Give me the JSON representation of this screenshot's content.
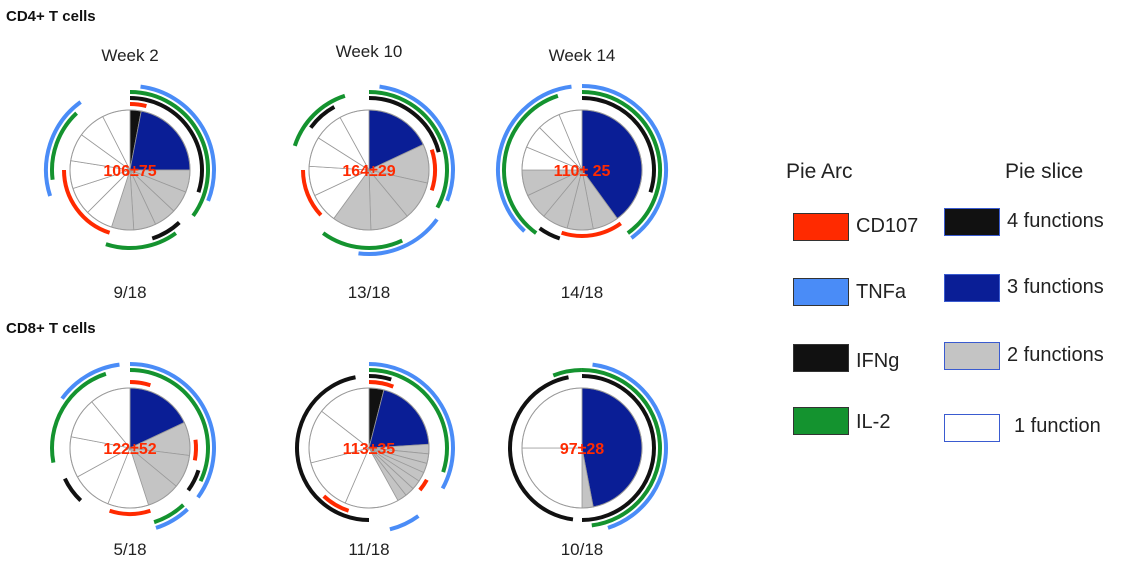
{
  "groups": [
    {
      "title": "CD4+ T cells"
    },
    {
      "title": "CD8+ T cells"
    }
  ],
  "legend": {
    "arc_title": "Pie Arc",
    "slice_title": "Pie slice",
    "arcs": [
      {
        "label": "CD107",
        "color": "#ff2a00"
      },
      {
        "label": "TNFa",
        "color": "#4a8cf7"
      },
      {
        "label": "IFNg",
        "color": "#111111"
      },
      {
        "label": "IL-2",
        "color": "#14932f"
      }
    ],
    "slices": [
      {
        "label": "4 functions",
        "color": "#111111"
      },
      {
        "label": "3 functions",
        "color": "#0a1e96"
      },
      {
        "label": "2 functions",
        "color": "#c4c4c4"
      },
      {
        "label": "1 function",
        "color": "#ffffff"
      }
    ]
  },
  "chart_data": [
    {
      "type": "pie",
      "group": "CD4+ T cells",
      "title": "Week 2",
      "center_label": "106±75",
      "responders": "9/18",
      "slices": [
        {
          "category": "4 functions",
          "value": 0.03
        },
        {
          "category": "3 functions",
          "value": 0.22
        },
        {
          "category": "2 functions",
          "value": 0.3,
          "parts": 5
        },
        {
          "category": "1 function",
          "value": 0.45,
          "parts": 6
        }
      ],
      "arcs": [
        {
          "marker": "CD107",
          "start": 0.0,
          "end": 0.04
        },
        {
          "marker": "TNFa",
          "start": 0.02,
          "end": 0.31
        },
        {
          "marker": "TNFa",
          "start": 0.7,
          "end": 0.9
        },
        {
          "marker": "IFNg",
          "start": 0.0,
          "end": 0.3
        },
        {
          "marker": "IFNg",
          "start": 0.38,
          "end": 0.45
        },
        {
          "marker": "IL-2",
          "start": 0.0,
          "end": 0.35
        },
        {
          "marker": "IL-2",
          "start": 0.4,
          "end": 0.55
        },
        {
          "marker": "IL-2",
          "start": 0.73,
          "end": 0.88
        },
        {
          "marker": "CD107",
          "start": 0.55,
          "end": 0.75
        }
      ]
    },
    {
      "type": "pie",
      "group": "CD4+ T cells",
      "title": "Week 10",
      "center_label": "164±29",
      "responders": "13/18",
      "slices": [
        {
          "category": "4 functions",
          "value": 0.0
        },
        {
          "category": "3 functions",
          "value": 0.18
        },
        {
          "category": "2 functions",
          "value": 0.42,
          "parts": 4
        },
        {
          "category": "1 function",
          "value": 0.4,
          "parts": 5
        }
      ],
      "arcs": [
        {
          "marker": "IFNg",
          "start": 0.0,
          "end": 0.21
        },
        {
          "marker": "IFNg",
          "start": 0.85,
          "end": 0.92
        },
        {
          "marker": "IL-2",
          "start": 0.0,
          "end": 0.33
        },
        {
          "marker": "IL-2",
          "start": 0.43,
          "end": 0.6
        },
        {
          "marker": "IL-2",
          "start": 0.8,
          "end": 0.95
        },
        {
          "marker": "TNFa",
          "start": 0.02,
          "end": 0.31
        },
        {
          "marker": "TNFa",
          "start": 0.35,
          "end": 0.52
        },
        {
          "marker": "CD107",
          "start": 0.2,
          "end": 0.3
        },
        {
          "marker": "CD107",
          "start": 0.63,
          "end": 0.75
        }
      ]
    },
    {
      "type": "pie",
      "group": "CD4+ T cells",
      "title": "Week 14",
      "center_label": "110± 25",
      "responders": "14/18",
      "slices": [
        {
          "category": "4 functions",
          "value": 0.0
        },
        {
          "category": "3 functions",
          "value": 0.4
        },
        {
          "category": "2 functions",
          "value": 0.35,
          "parts": 5
        },
        {
          "category": "1 function",
          "value": 0.25,
          "parts": 4
        }
      ],
      "arcs": [
        {
          "marker": "IFNg",
          "start": 0.0,
          "end": 0.3
        },
        {
          "marker": "IFNg",
          "start": 0.55,
          "end": 0.6
        },
        {
          "marker": "IL-2",
          "start": 0.0,
          "end": 0.4
        },
        {
          "marker": "IL-2",
          "start": 0.6,
          "end": 0.95
        },
        {
          "marker": "TNFa",
          "start": 0.0,
          "end": 0.4
        },
        {
          "marker": "TNFa",
          "start": 0.62,
          "end": 0.98
        },
        {
          "marker": "CD107",
          "start": 0.4,
          "end": 0.55
        }
      ]
    },
    {
      "type": "pie",
      "group": "CD8+ T cells",
      "title": "",
      "center_label": "122±52",
      "responders": "5/18",
      "slices": [
        {
          "category": "4 functions",
          "value": 0.0
        },
        {
          "category": "3 functions",
          "value": 0.18
        },
        {
          "category": "2 functions",
          "value": 0.27,
          "parts": 3
        },
        {
          "category": "1 function",
          "value": 0.55,
          "parts": 5
        }
      ],
      "arcs": [
        {
          "marker": "CD107",
          "start": 0.0,
          "end": 0.05
        },
        {
          "marker": "CD107",
          "start": 0.23,
          "end": 0.28
        },
        {
          "marker": "CD107",
          "start": 0.45,
          "end": 0.55
        },
        {
          "marker": "IL-2",
          "start": 0.0,
          "end": 0.32
        },
        {
          "marker": "IL-2",
          "start": 0.38,
          "end": 0.45
        },
        {
          "marker": "IL-2",
          "start": 0.72,
          "end": 0.95
        },
        {
          "marker": "IFNg",
          "start": 0.3,
          "end": 0.35
        },
        {
          "marker": "IFNg",
          "start": 0.62,
          "end": 0.68
        },
        {
          "marker": "TNFa",
          "start": 0.0,
          "end": 0.35
        },
        {
          "marker": "TNFa",
          "start": 0.38,
          "end": 0.45
        },
        {
          "marker": "TNFa",
          "start": 0.85,
          "end": 0.98
        }
      ]
    },
    {
      "type": "pie",
      "group": "CD8+ T cells",
      "title": "",
      "center_label": "113±35",
      "responders": "11/18",
      "slices": [
        {
          "category": "4 functions",
          "value": 0.04
        },
        {
          "category": "3 functions",
          "value": 0.2
        },
        {
          "category": "2 functions",
          "value": 0.18,
          "parts": 7
        },
        {
          "category": "1 function",
          "value": 0.58,
          "parts": 4
        }
      ],
      "arcs": [
        {
          "marker": "IFNg",
          "start": 0.0,
          "end": 0.05
        },
        {
          "marker": "IFNg",
          "start": 0.5,
          "end": 0.97
        },
        {
          "marker": "CD107",
          "start": 0.0,
          "end": 0.06
        },
        {
          "marker": "CD107",
          "start": 0.33,
          "end": 0.36
        },
        {
          "marker": "CD107",
          "start": 0.55,
          "end": 0.62
        },
        {
          "marker": "IL-2",
          "start": 0.0,
          "end": 0.3
        },
        {
          "marker": "TNFa",
          "start": 0.0,
          "end": 0.33
        },
        {
          "marker": "TNFa",
          "start": 0.4,
          "end": 0.46
        }
      ]
    },
    {
      "type": "pie",
      "group": "CD8+ T cells",
      "title": "",
      "center_label": "97±28",
      "responders": "10/18",
      "slices": [
        {
          "category": "4 functions",
          "value": 0.0
        },
        {
          "category": "3 functions",
          "value": 0.47
        },
        {
          "category": "2 functions",
          "value": 0.03,
          "parts": 1
        },
        {
          "category": "1 function",
          "value": 0.5,
          "parts": 2
        }
      ],
      "arcs": [
        {
          "marker": "IFNg",
          "start": 0.0,
          "end": 0.5
        },
        {
          "marker": "IFNg",
          "start": 0.52,
          "end": 0.97
        },
        {
          "marker": "IL-2",
          "start": 0.0,
          "end": 0.48
        },
        {
          "marker": "IL-2",
          "start": 0.94,
          "end": 1.0
        },
        {
          "marker": "TNFa",
          "start": 0.02,
          "end": 0.45
        }
      ]
    }
  ]
}
